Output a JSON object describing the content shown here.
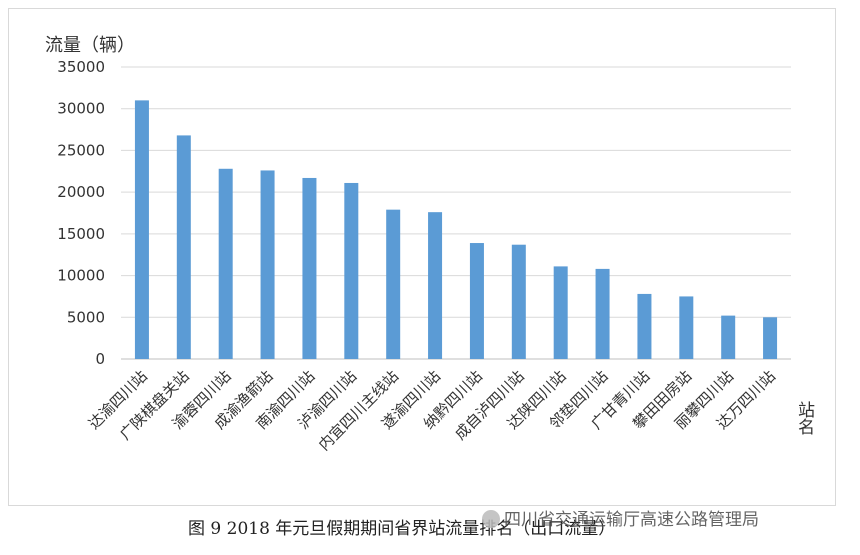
{
  "chart_data": {
    "type": "bar",
    "ylabel": "流量（辆）",
    "xlabel": "站名",
    "ylim": [
      0,
      35000
    ],
    "yticks": [
      0,
      5000,
      10000,
      15000,
      20000,
      25000,
      30000,
      35000
    ],
    "grid": true,
    "bar_color": "#5b9bd5",
    "categories": [
      "达渝四川站",
      "广陕棋盘关站",
      "渝蓉四川站",
      "成渝渔箭站",
      "南渝四川站",
      "泸渝四川站",
      "内宜四川主线站",
      "遂渝四川站",
      "纳黔四川站",
      "成自泸四川站",
      "达陕四川站",
      "邻垫四川站",
      "广甘青川站",
      "攀田田房站",
      "丽攀四川站",
      "达万四川站"
    ],
    "values": [
      31000,
      26800,
      22800,
      22600,
      21700,
      21100,
      17900,
      17600,
      13900,
      13700,
      11100,
      10800,
      7800,
      7500,
      5200,
      5000
    ]
  },
  "caption": "图 9  2018 年元旦假期期间省界站流量排名（出口流量）",
  "watermark": "四川省交通运输厅高速公路管理局"
}
